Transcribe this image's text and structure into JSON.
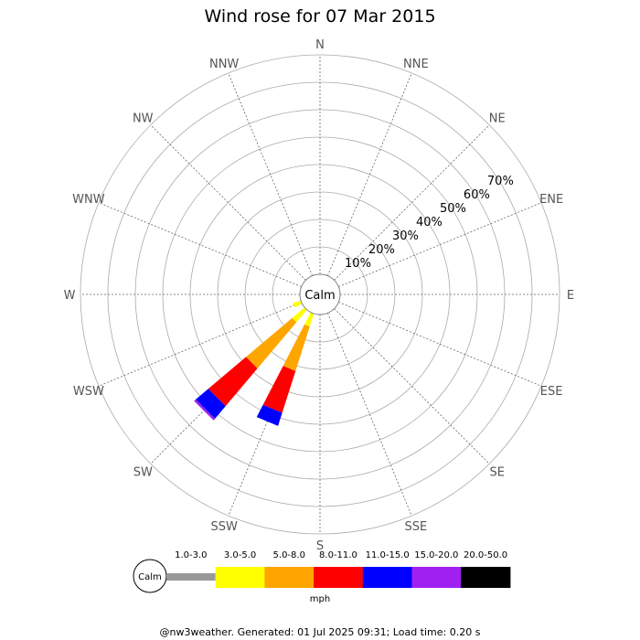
{
  "chart_data": {
    "type": "wind-rose",
    "title": "Wind rose for 07 Mar 2015",
    "directions": [
      "N",
      "NNE",
      "NE",
      "ENE",
      "E",
      "ESE",
      "SE",
      "SSE",
      "S",
      "SSW",
      "SW",
      "WSW",
      "W",
      "WNW",
      "NW",
      "NNW"
    ],
    "ring_labels": [
      "10%",
      "20%",
      "30%",
      "40%",
      "50%",
      "60%",
      "70%"
    ],
    "r_max_percent": 80,
    "calm_label": "Calm",
    "unit": "mph",
    "bins": [
      {
        "label": "1.0-3.0",
        "color": "#999999"
      },
      {
        "label": "3.0-5.0",
        "color": "#ffff00"
      },
      {
        "label": "5.0-8.0",
        "color": "#ffa500"
      },
      {
        "label": "8.0-11.0",
        "color": "#ff0000"
      },
      {
        "label": "11.0-15.0",
        "color": "#0000ff"
      },
      {
        "label": "15.0-20.0",
        "color": "#a020f0"
      },
      {
        "label": "20.0-50.0",
        "color": "#000000"
      }
    ],
    "series": [
      {
        "direction": "SSW",
        "values": [
          0,
          5,
          17,
          16,
          5,
          0,
          0
        ]
      },
      {
        "direction": "SW",
        "values": [
          0,
          6,
          22,
          18,
          6,
          0.8,
          0
        ]
      },
      {
        "direction": "WSW",
        "values": [
          0,
          3,
          0,
          0,
          0,
          0,
          0
        ]
      }
    ]
  },
  "footer": "@nw3weather. Generated: 01 Jul 2025 09:31; Load time: 0.20 s"
}
